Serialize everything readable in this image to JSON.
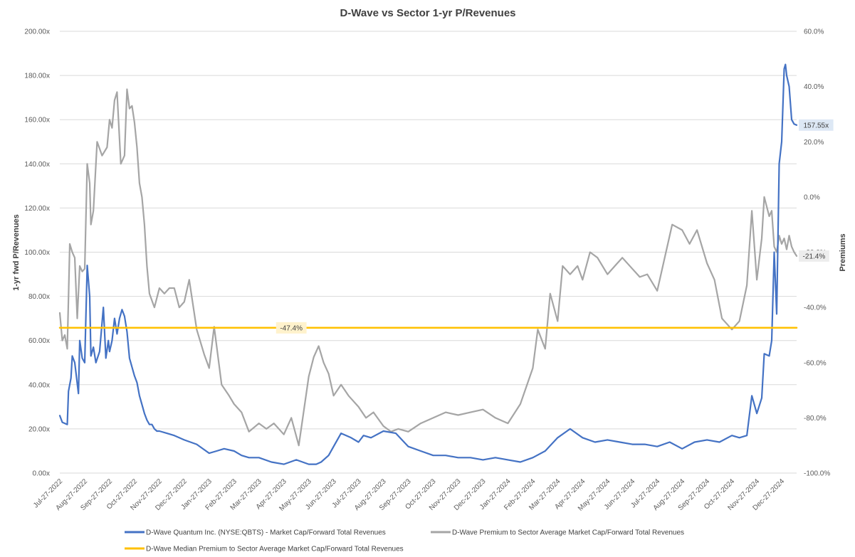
{
  "chart_data": {
    "type": "line",
    "title": "D-Wave vs Sector 1-yr P/Revenues",
    "ylabel": "1-yr fwd P/Revenues",
    "y2label": "Premiums",
    "ylim": [
      0,
      200
    ],
    "y2lim": [
      -100,
      60
    ],
    "y_ticks": [
      "0.00x",
      "20.00x",
      "40.00x",
      "60.00x",
      "80.00x",
      "100.00x",
      "120.00x",
      "140.00x",
      "160.00x",
      "180.00x",
      "200.00x"
    ],
    "y2_ticks": [
      "-100.0%",
      "-80.0%",
      "-60.0%",
      "-40.0%",
      "-20.0%",
      "0.0%",
      "20.0%",
      "40.0%",
      "60.0%"
    ],
    "x_ticks": [
      "Jul-27-2022",
      "Aug-27-2022",
      "Sep-27-2022",
      "Oct-27-2022",
      "Nov-27-2022",
      "Dec-27-2022",
      "Jan-27-2023",
      "Feb-27-2023",
      "Mar-27-2023",
      "Apr-27-2023",
      "May-27-2023",
      "Jun-27-2023",
      "Jul-27-2023",
      "Aug-27-2023",
      "Sep-27-2023",
      "Oct-27-2023",
      "Nov-27-2023",
      "Dec-27-2023",
      "Jan-27-2024",
      "Feb-27-2024",
      "Mar-27-2024",
      "Apr-27-2024",
      "May-27-2024",
      "Jun-27-2024",
      "Jul-27-2024",
      "Aug-27-2024",
      "Sep-27-2024",
      "Oct-27-2024",
      "Nov-27-2024",
      "Dec-27-2024"
    ],
    "x_range": [
      0,
      29.6
    ],
    "series": [
      {
        "name": "D-Wave Quantum Inc. (NYSE:QBTS) - Market Cap/Forward Total Revenues",
        "axis": "left",
        "color": "#4472C4",
        "x": [
          0,
          0.1,
          0.3,
          0.35,
          0.45,
          0.5,
          0.6,
          0.75,
          0.8,
          0.9,
          1.0,
          1.1,
          1.2,
          1.25,
          1.35,
          1.45,
          1.6,
          1.75,
          1.85,
          1.95,
          2.0,
          2.1,
          2.2,
          2.3,
          2.4,
          2.5,
          2.6,
          2.7,
          2.8,
          2.9,
          3.0,
          3.1,
          3.2,
          3.3,
          3.4,
          3.5,
          3.6,
          3.7,
          3.8,
          3.9,
          4.0,
          4.3,
          4.6,
          5.0,
          5.5,
          6.0,
          6.3,
          6.6,
          7.0,
          7.3,
          7.6,
          8.0,
          8.5,
          9.0,
          9.5,
          10.0,
          10.3,
          10.5,
          10.8,
          11.0,
          11.3,
          11.7,
          12.0,
          12.2,
          12.5,
          13.0,
          13.5,
          14.0,
          14.5,
          15.0,
          15.5,
          16.0,
          16.5,
          17.0,
          17.5,
          18.0,
          18.5,
          19.0,
          19.5,
          20.0,
          20.5,
          21.0,
          21.5,
          22.0,
          22.5,
          23.0,
          23.5,
          24.0,
          24.5,
          25.0,
          25.5,
          26.0,
          26.5,
          27.0,
          27.3,
          27.6,
          27.8,
          28.0,
          28.2,
          28.3,
          28.5,
          28.6,
          28.7,
          28.8,
          28.9,
          29.0,
          29.1,
          29.15,
          29.2,
          29.3,
          29.4,
          29.5,
          29.6
        ],
        "values": [
          26,
          23,
          22,
          37,
          43,
          53,
          50,
          36,
          60,
          52,
          50,
          94,
          80,
          53,
          57,
          50,
          55,
          75,
          52,
          60,
          55,
          60,
          70,
          63,
          70,
          74,
          71,
          64,
          52,
          48,
          44,
          41,
          35,
          31,
          27,
          24,
          22,
          22,
          20,
          19,
          19,
          18,
          17,
          15,
          13,
          9,
          10,
          11,
          10,
          8,
          7,
          7,
          5,
          4,
          6,
          4,
          4,
          5,
          8,
          12,
          18,
          16,
          14,
          17,
          16,
          19,
          18,
          12,
          10,
          8,
          8,
          7,
          7,
          6,
          7,
          6,
          5,
          7,
          10,
          16,
          20,
          16,
          14,
          15,
          14,
          13,
          13,
          12,
          14,
          11,
          14,
          15,
          14,
          17,
          16,
          17,
          35,
          27,
          34,
          54,
          53,
          60,
          100,
          72,
          140,
          150,
          183,
          185,
          180,
          175,
          160,
          158,
          157.55
        ]
      },
      {
        "name": "D-Wave Premium to Sector Average Market Cap/Forward Total Revenues",
        "axis": "right",
        "color": "#A5A5A5",
        "x": [
          0,
          0.1,
          0.2,
          0.3,
          0.4,
          0.5,
          0.6,
          0.7,
          0.8,
          0.9,
          1.0,
          1.1,
          1.2,
          1.25,
          1.35,
          1.5,
          1.7,
          1.9,
          2.0,
          2.1,
          2.2,
          2.3,
          2.45,
          2.6,
          2.7,
          2.8,
          2.9,
          3.0,
          3.1,
          3.2,
          3.3,
          3.4,
          3.5,
          3.6,
          3.8,
          4.0,
          4.2,
          4.4,
          4.6,
          4.8,
          5.0,
          5.2,
          5.5,
          5.8,
          6.0,
          6.2,
          6.5,
          6.8,
          7.0,
          7.3,
          7.6,
          8.0,
          8.3,
          8.6,
          9.0,
          9.3,
          9.6,
          10.0,
          10.2,
          10.4,
          10.6,
          10.8,
          11.0,
          11.3,
          11.6,
          12.0,
          12.3,
          12.6,
          13.0,
          13.3,
          13.6,
          14.0,
          14.5,
          15.0,
          15.5,
          16.0,
          16.5,
          17.0,
          17.5,
          18.0,
          18.5,
          19.0,
          19.2,
          19.5,
          19.7,
          20.0,
          20.2,
          20.5,
          20.8,
          21.0,
          21.3,
          21.6,
          22.0,
          22.3,
          22.6,
          23.0,
          23.3,
          23.6,
          24.0,
          24.3,
          24.6,
          25.0,
          25.3,
          25.6,
          26.0,
          26.3,
          26.6,
          27.0,
          27.3,
          27.6,
          27.8,
          28.0,
          28.2,
          28.3,
          28.5,
          28.6,
          28.7,
          28.8,
          28.9,
          29.0,
          29.1,
          29.2,
          29.3,
          29.4,
          29.5,
          29.6
        ],
        "values": [
          -42,
          -52,
          -50,
          -55,
          -17,
          -20,
          -22,
          -44,
          -25,
          -27,
          -26,
          12,
          5,
          -10,
          -5,
          20,
          15,
          18,
          28,
          25,
          35,
          38,
          12,
          15,
          39,
          32,
          33,
          27,
          18,
          5,
          0,
          -10,
          -25,
          -35,
          -40,
          -33,
          -35,
          -33,
          -33,
          -40,
          -38,
          -30,
          -48,
          -57,
          -62,
          -47,
          -68,
          -72,
          -75,
          -78,
          -85,
          -82,
          -84,
          -82,
          -86,
          -80,
          -90,
          -65,
          -58,
          -54,
          -60,
          -64,
          -72,
          -68,
          -72,
          -76,
          -80,
          -78,
          -83,
          -85,
          -84,
          -85,
          -82,
          -80,
          -78,
          -79,
          -78,
          -77,
          -80,
          -82,
          -75,
          -62,
          -48,
          -55,
          -35,
          -45,
          -25,
          -28,
          -25,
          -30,
          -20,
          -22,
          -28,
          -25,
          -22,
          -26,
          -29,
          -28,
          -34,
          -22,
          -10,
          -12,
          -17,
          -12,
          -24,
          -30,
          -44,
          -48,
          -45,
          -32,
          -5,
          -30,
          -15,
          0,
          -7,
          -5,
          -18,
          -20,
          -14,
          -17,
          -15,
          -19,
          -14,
          -18,
          -20,
          -21.4
        ]
      },
      {
        "name": "D-Wave Median Premium to Sector Average Market Cap/Forward Total Revenues",
        "axis": "right",
        "color": "#FFC000",
        "x": [
          0,
          29.6
        ],
        "values": [
          -47.4,
          -47.4
        ]
      }
    ],
    "callouts": [
      {
        "label": "157.55x",
        "series": 0,
        "x": 29.6,
        "value": 157.55,
        "bg": "#DDE8F5"
      },
      {
        "label": "-21.4%",
        "series": 1,
        "x": 29.6,
        "value": -21.4,
        "bg": "#EDEDED"
      },
      {
        "label": "-47.4%",
        "series": 2,
        "x": 9.3,
        "value": -47.4,
        "bg": "#FFF2CC"
      }
    ],
    "legend": {
      "position": "bottom",
      "entries": [
        "D-Wave Quantum Inc. (NYSE:QBTS) - Market Cap/Forward Total Revenues",
        "D-Wave Premium to Sector Average Market Cap/Forward Total Revenues",
        "D-Wave Median Premium to Sector Average Market Cap/Forward Total Revenues"
      ]
    },
    "grid": true
  }
}
